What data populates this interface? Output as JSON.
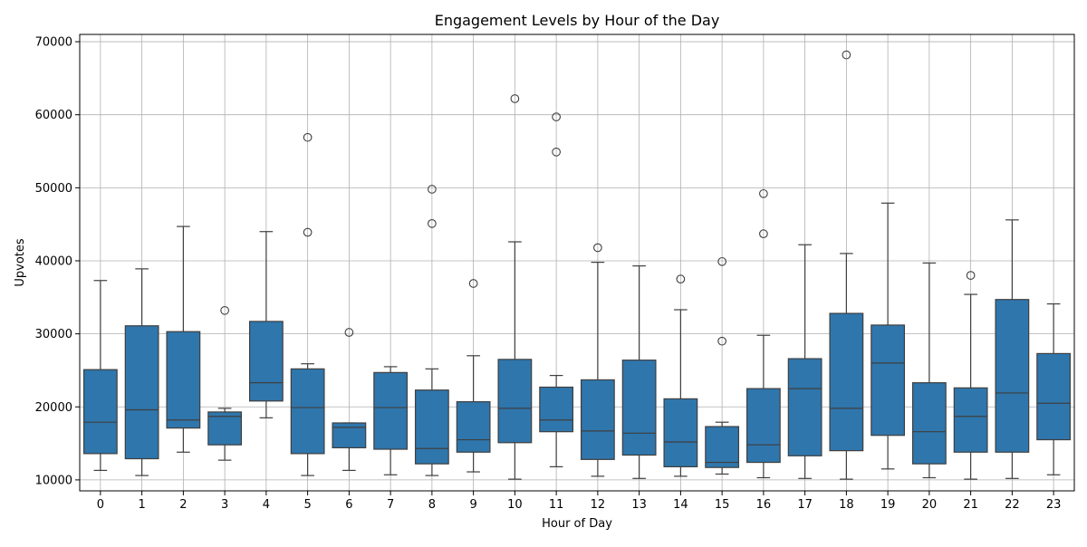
{
  "chart_data": {
    "type": "box",
    "title": "Engagement Levels by Hour of the Day",
    "xlabel": "Hour of Day",
    "ylabel": "Upvotes",
    "ylim": [
      8500,
      71000
    ],
    "yticks": [
      10000,
      20000,
      30000,
      40000,
      50000,
      60000,
      70000
    ],
    "grid": true,
    "box_color": "#2f76ac",
    "categories": [
      "0",
      "1",
      "2",
      "3",
      "4",
      "5",
      "6",
      "7",
      "8",
      "9",
      "10",
      "11",
      "12",
      "13",
      "14",
      "15",
      "16",
      "17",
      "18",
      "19",
      "20",
      "21",
      "22",
      "23"
    ],
    "boxes": [
      {
        "whislo": 11300,
        "q1": 13600,
        "med": 17900,
        "q3": 25100,
        "whishi": 37300,
        "fliers": []
      },
      {
        "whislo": 10600,
        "q1": 12900,
        "med": 19600,
        "q3": 31100,
        "whishi": 38900,
        "fliers": []
      },
      {
        "whislo": 13800,
        "q1": 17100,
        "med": 18200,
        "q3": 30300,
        "whishi": 44700,
        "fliers": []
      },
      {
        "whislo": 12700,
        "q1": 14800,
        "med": 18700,
        "q3": 19300,
        "whishi": 19800,
        "fliers": [
          33200
        ]
      },
      {
        "whislo": 18500,
        "q1": 20800,
        "med": 23300,
        "q3": 31700,
        "whishi": 44000,
        "fliers": []
      },
      {
        "whislo": 10600,
        "q1": 13600,
        "med": 19900,
        "q3": 25200,
        "whishi": 25900,
        "fliers": [
          56900,
          43900
        ]
      },
      {
        "whislo": 11300,
        "q1": 14400,
        "med": 17200,
        "q3": 17800,
        "whishi": 17800,
        "fliers": [
          30200
        ]
      },
      {
        "whislo": 10700,
        "q1": 14200,
        "med": 19900,
        "q3": 24700,
        "whishi": 25500,
        "fliers": []
      },
      {
        "whislo": 10600,
        "q1": 12200,
        "med": 14300,
        "q3": 22300,
        "whishi": 25200,
        "fliers": [
          49800,
          45100
        ]
      },
      {
        "whislo": 11100,
        "q1": 13800,
        "med": 15500,
        "q3": 20700,
        "whishi": 27000,
        "fliers": [
          36900
        ]
      },
      {
        "whislo": 10100,
        "q1": 15100,
        "med": 19800,
        "q3": 26500,
        "whishi": 42600,
        "fliers": [
          62200
        ]
      },
      {
        "whislo": 11800,
        "q1": 16600,
        "med": 18200,
        "q3": 22700,
        "whishi": 24300,
        "fliers": [
          59700,
          54900
        ]
      },
      {
        "whislo": 10500,
        "q1": 12800,
        "med": 16700,
        "q3": 23700,
        "whishi": 39800,
        "fliers": [
          41800
        ]
      },
      {
        "whislo": 10200,
        "q1": 13400,
        "med": 16400,
        "q3": 26400,
        "whishi": 39300,
        "fliers": []
      },
      {
        "whislo": 10500,
        "q1": 11800,
        "med": 15200,
        "q3": 21100,
        "whishi": 33300,
        "fliers": [
          37500
        ]
      },
      {
        "whislo": 10800,
        "q1": 11700,
        "med": 12400,
        "q3": 17300,
        "whishi": 17900,
        "fliers": [
          39900,
          29000
        ]
      },
      {
        "whislo": 10300,
        "q1": 12400,
        "med": 14800,
        "q3": 22500,
        "whishi": 29800,
        "fliers": [
          49200,
          43700
        ]
      },
      {
        "whislo": 10200,
        "q1": 13300,
        "med": 22500,
        "q3": 26600,
        "whishi": 42200,
        "fliers": []
      },
      {
        "whislo": 10100,
        "q1": 14000,
        "med": 19800,
        "q3": 32800,
        "whishi": 41000,
        "fliers": [
          68200
        ]
      },
      {
        "whislo": 11500,
        "q1": 16100,
        "med": 26000,
        "q3": 31200,
        "whishi": 47900,
        "fliers": []
      },
      {
        "whislo": 10300,
        "q1": 12200,
        "med": 16600,
        "q3": 23300,
        "whishi": 39700,
        "fliers": []
      },
      {
        "whislo": 10100,
        "q1": 13800,
        "med": 18700,
        "q3": 22600,
        "whishi": 35400,
        "fliers": [
          38000
        ]
      },
      {
        "whislo": 10200,
        "q1": 13800,
        "med": 21900,
        "q3": 34700,
        "whishi": 45600,
        "fliers": []
      },
      {
        "whislo": 10700,
        "q1": 15500,
        "med": 20500,
        "q3": 27300,
        "whishi": 34100,
        "fliers": []
      }
    ]
  }
}
